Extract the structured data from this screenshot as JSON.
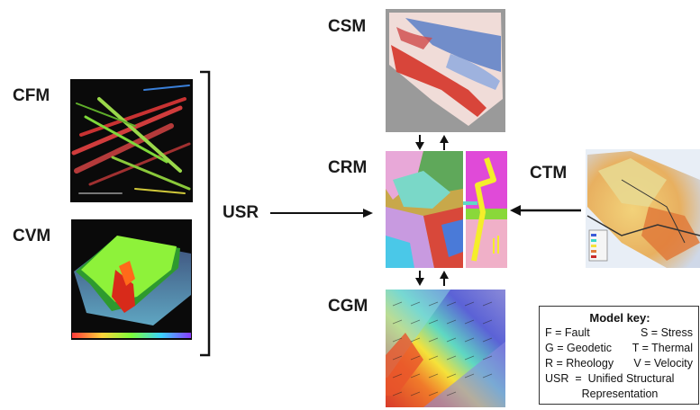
{
  "labels": {
    "cfm": "CFM",
    "cvm": "CVM",
    "usr": "USR",
    "csm": "CSM",
    "crm": "CRM",
    "ctm": "CTM",
    "cgm": "CGM"
  },
  "model_key": {
    "title": "Model key:",
    "rows": [
      [
        "F = Fault",
        "S = Stress"
      ],
      [
        "G = Geodetic",
        "T = Thermal"
      ],
      [
        "R = Rheology",
        "V = Velocity"
      ]
    ],
    "usr_line1": "USR  =  Unified Structural",
    "usr_line2": "Representation"
  },
  "colors": {
    "stress_red": "#d8453a",
    "stress_blue": "#5a7fc8",
    "rheology_yellow": "#f5ee2a",
    "rheology_magenta": "#e04ad8",
    "velocity_green": "#9ae83a",
    "geodetic_blue": "#5b62d6"
  }
}
